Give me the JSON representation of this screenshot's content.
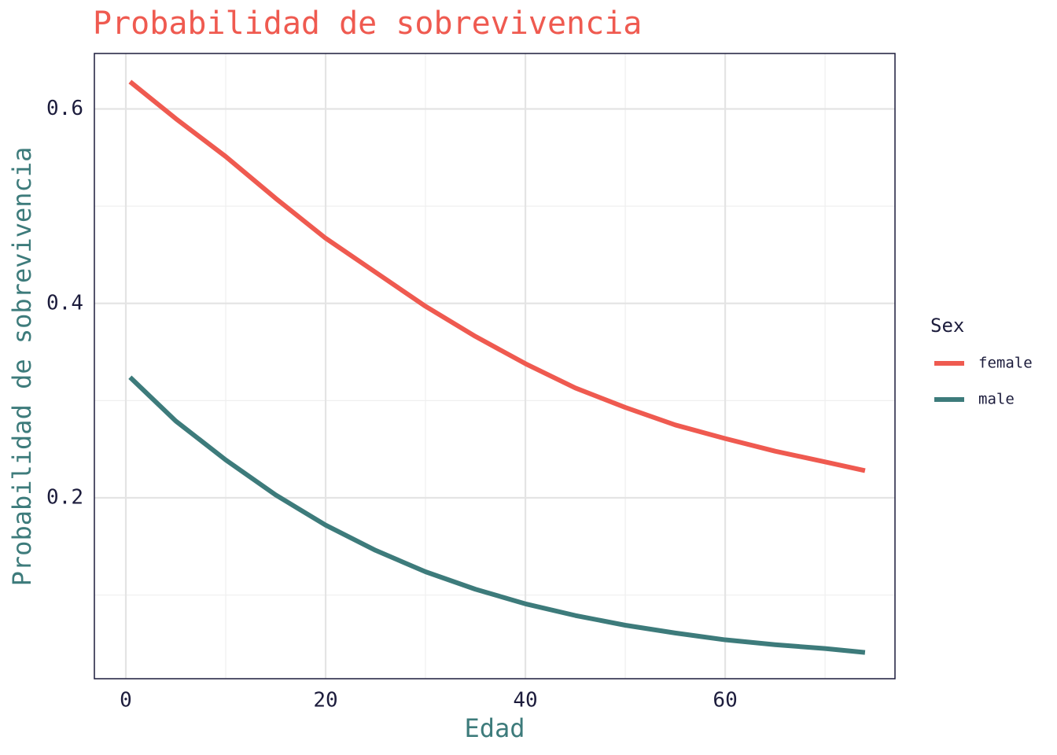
{
  "chart_data": {
    "type": "line",
    "title": "Probabilidad de sobrevivencia",
    "x_label": "Edad",
    "y_label": "Probabilidad de sobrevivencia",
    "legend_title": "Sex",
    "legend_position": "right",
    "grid": true,
    "xlim": [
      -3.15,
      77.0
    ],
    "ylim": [
      0.014,
      0.657
    ],
    "xticks": [
      0,
      20,
      40,
      60
    ],
    "yticks": [
      0.2,
      0.4,
      0.6
    ],
    "x_minor_grid": [
      10,
      30,
      50,
      70
    ],
    "y_minor_grid": [
      0.1,
      0.3,
      0.5
    ],
    "x": [
      0.42,
      5,
      10,
      15,
      20,
      25,
      30,
      35,
      40,
      45,
      50,
      55,
      60,
      65,
      70,
      74
    ],
    "series": [
      {
        "name": "female",
        "color": "#ef5a50",
        "values": [
          0.628,
          0.59,
          0.551,
          0.508,
          0.467,
          0.432,
          0.397,
          0.366,
          0.338,
          0.313,
          0.293,
          0.275,
          0.261,
          0.248,
          0.237,
          0.228
        ]
      },
      {
        "name": "male",
        "color": "#3d7b7b",
        "values": [
          0.324,
          0.279,
          0.239,
          0.203,
          0.172,
          0.146,
          0.124,
          0.106,
          0.091,
          0.079,
          0.069,
          0.061,
          0.054,
          0.049,
          0.045,
          0.041
        ]
      }
    ]
  }
}
